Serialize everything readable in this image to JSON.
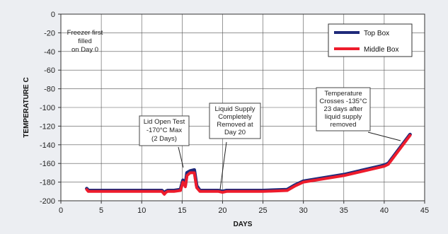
{
  "chart_data": {
    "type": "line",
    "title": "",
    "xlabel": "DAYS",
    "ylabel": "TEMPERATURE C",
    "xlim": [
      0,
      45
    ],
    "ylim": [
      -200,
      0
    ],
    "x_ticks": [
      0,
      5,
      10,
      15,
      20,
      25,
      30,
      35,
      40,
      45
    ],
    "y_ticks": [
      0,
      -20,
      -40,
      -60,
      -80,
      -100,
      -120,
      -140,
      -160,
      -180,
      -200
    ],
    "x_tick_labels": [
      "0",
      "5",
      "10",
      "15",
      "20",
      "25",
      "30",
      "35",
      "40",
      "45"
    ],
    "y_tick_labels": [
      "0",
      "-20",
      "-40",
      "-60",
      "-80",
      "-100",
      "-120",
      "-140",
      "-160",
      "-180",
      "-200"
    ],
    "grid": true,
    "legend_position": "top-right",
    "series": [
      {
        "name": "Top Box",
        "color": "#1f2a7a",
        "x": [
          3.2,
          3.4,
          5,
          10,
          12.5,
          12.8,
          13.0,
          13.2,
          14,
          14.8,
          15.1,
          15.4,
          15.6,
          16.0,
          16.5,
          16.8,
          17.2,
          18,
          19.5,
          20,
          20.5,
          25,
          28,
          29,
          30,
          35,
          40,
          40.5,
          43.2
        ],
        "y": [
          -187,
          -189,
          -189,
          -189,
          -189,
          -192,
          -190,
          -189,
          -189,
          -188,
          -178,
          -183,
          -170,
          -168,
          -167,
          -184,
          -189,
          -189,
          -189,
          -190,
          -189,
          -189,
          -188,
          -183,
          -179,
          -172,
          -162,
          -160,
          -129
        ]
      },
      {
        "name": "Middle Box",
        "color": "#ee1c2c",
        "x": [
          3.2,
          3.4,
          5,
          10,
          12.5,
          12.8,
          13.0,
          13.2,
          14,
          14.8,
          15.1,
          15.4,
          15.6,
          16.0,
          16.5,
          16.8,
          17.2,
          18,
          19.5,
          20,
          20.5,
          25,
          28,
          29,
          30,
          35,
          40,
          40.5,
          43.2
        ],
        "y": [
          -188,
          -190,
          -190,
          -190,
          -190,
          -193,
          -191,
          -190,
          -190,
          -189,
          -180,
          -185,
          -173,
          -170,
          -170,
          -186,
          -190,
          -190,
          -190,
          -191,
          -190,
          -190,
          -189,
          -184,
          -180,
          -173,
          -163,
          -161,
          -130
        ]
      }
    ],
    "annotations": [
      {
        "id": "freezer",
        "lines": [
          "Freezer first",
          "filled",
          "on Day 0"
        ]
      },
      {
        "id": "lid",
        "lines": [
          "Lid Open Test",
          "-170°C Max",
          "(2 Days)"
        ]
      },
      {
        "id": "liquid",
        "lines": [
          "Liquid Supply",
          "Completely",
          "Removed at",
          "Day 20"
        ]
      },
      {
        "id": "crosses",
        "lines": [
          "Temperature",
          "Crosses -135°C",
          "23 days after",
          "liquid supply",
          "removed"
        ]
      }
    ]
  }
}
